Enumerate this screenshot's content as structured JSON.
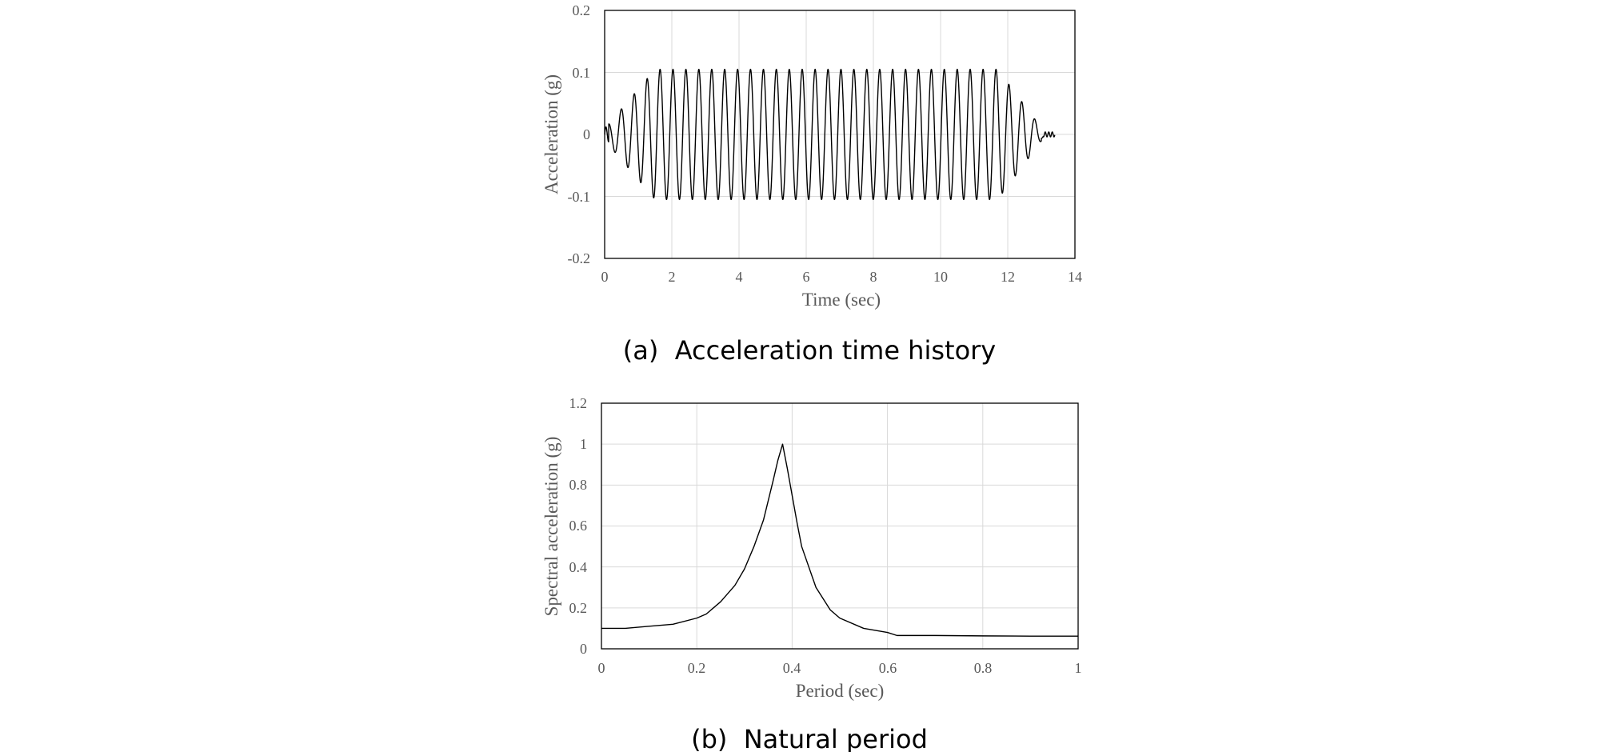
{
  "chart_data": [
    {
      "type": "line",
      "caption": "(a)  Acceleration time history",
      "xlabel": "Time (sec)",
      "ylabel": "Acceleration (g)",
      "xlim": [
        0,
        14
      ],
      "ylim": [
        -0.2,
        0.2
      ],
      "xticks": [
        "0",
        "2",
        "4",
        "6",
        "8",
        "10",
        "12",
        "14"
      ],
      "yticks": [
        "0.2",
        "0.1",
        "0",
        "-0.1",
        "-0.2"
      ],
      "grid": true,
      "series": [
        {
          "name": "acceleration",
          "description": "sinusoidal excitation ~2.6 Hz, ramps up to about ±0.105 g by ~1.5 s, holds, ramps down from ~12 s, ends ~13.4 s",
          "duration_sec": 13.4,
          "frequency_hz": 2.6,
          "peak_amplitude_g": 0.105
        }
      ]
    },
    {
      "type": "line",
      "caption": "(b)  Natural period",
      "xlabel": "Period (sec)",
      "ylabel": "Spectral acceleration (g)",
      "xlim": [
        0,
        1
      ],
      "ylim": [
        0,
        1.2
      ],
      "xticks": [
        "0",
        "0.2",
        "0.4",
        "0.6",
        "0.8",
        "1"
      ],
      "yticks": [
        "1.2",
        "1",
        "0.8",
        "0.6",
        "0.4",
        "0.2",
        "0"
      ],
      "grid": true,
      "series": [
        {
          "name": "spectral acceleration",
          "x": [
            0,
            0.05,
            0.1,
            0.15,
            0.2,
            0.22,
            0.25,
            0.28,
            0.3,
            0.32,
            0.34,
            0.36,
            0.37,
            0.38,
            0.39,
            0.4,
            0.41,
            0.42,
            0.45,
            0.48,
            0.5,
            0.55,
            0.6,
            0.62,
            0.7,
            0.8,
            0.9,
            1.0
          ],
          "y": [
            0.1,
            0.1,
            0.11,
            0.12,
            0.15,
            0.17,
            0.23,
            0.31,
            0.39,
            0.5,
            0.63,
            0.82,
            0.92,
            1.0,
            0.88,
            0.75,
            0.62,
            0.5,
            0.3,
            0.19,
            0.15,
            0.1,
            0.08,
            0.065,
            0.065,
            0.063,
            0.062,
            0.062
          ]
        }
      ]
    }
  ]
}
